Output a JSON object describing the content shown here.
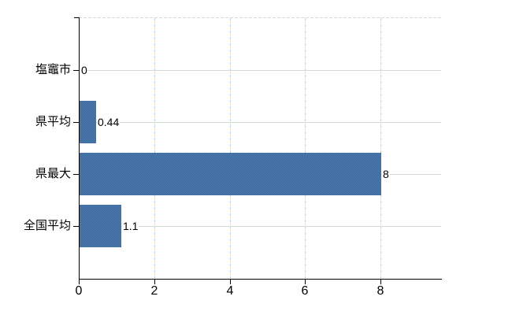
{
  "chart_data": {
    "type": "bar",
    "orientation": "horizontal",
    "title": "",
    "xlabel": "",
    "ylabel": "",
    "categories": [
      "塩竈市",
      "県平均",
      "県最大",
      "全国平均"
    ],
    "values": [
      0,
      0.44,
      8,
      1.1
    ],
    "value_labels": [
      "0",
      "0.44",
      "8",
      "1.1"
    ],
    "x_ticks": [
      0,
      2,
      4,
      6,
      8
    ],
    "x_tick_labels": [
      "0",
      "2",
      "4",
      "6",
      "8"
    ],
    "xlim": [
      0,
      9.6
    ],
    "grid": true,
    "legend_position": "none",
    "bar_color": "#4270a5",
    "h_gridline_color": "#d3ddd3",
    "v_gridline_colors": [
      "#b6cfe8",
      "#f1dec2"
    ],
    "axis_color": "#000000",
    "background_color": "#ffffff"
  }
}
